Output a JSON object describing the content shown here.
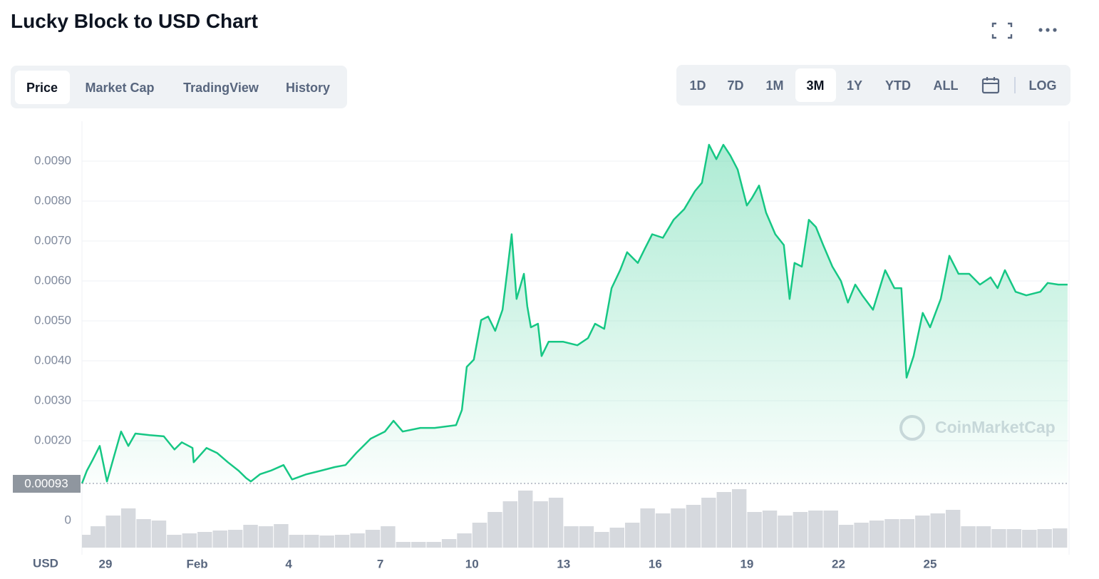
{
  "ui": {
    "tabs": [
      "Price",
      "Market Cap",
      "TradingView",
      "History"
    ],
    "active_tab": 0,
    "ranges": [
      "1D",
      "7D",
      "1M",
      "3M",
      "1Y",
      "YTD",
      "ALL"
    ],
    "active_range": 3,
    "log_button": "LOG",
    "watermark": "CoinMarketCap",
    "currency_label": "USD"
  },
  "chart_data": {
    "type": "area",
    "title": "Lucky Block to USD Chart",
    "color": "#16c784",
    "x": [
      28.23,
      28.39,
      28.58,
      28.81,
      29.05,
      29.28,
      29.51,
      29.75,
      29.98,
      30.45,
      30.91,
      31.26,
      31.5,
      31.85,
      31.89,
      32.31,
      32.66,
      33.01,
      33.36,
      33.6,
      33.76,
      34.06,
      34.41,
      34.83,
      35.11,
      35.58,
      36.05,
      36.51,
      36.86,
      37.21,
      37.68,
      38.15,
      38.43,
      38.73,
      39.31,
      39.78,
      40.48,
      40.67,
      40.83,
      41.06,
      41.3,
      41.53,
      41.76,
      42.0,
      42.16,
      42.3,
      42.46,
      42.7,
      42.81,
      42.93,
      43.16,
      43.28,
      43.51,
      43.98,
      44.45,
      44.8,
      45.03,
      45.33,
      45.57,
      45.85,
      46.08,
      46.43,
      46.66,
      46.9,
      47.25,
      47.6,
      47.95,
      48.3,
      48.53,
      48.76,
      49.0,
      49.23,
      49.46,
      49.7,
      50.0,
      50.16,
      50.4,
      50.63,
      50.93,
      51.21,
      51.4,
      51.56,
      51.8,
      52.03,
      52.26,
      52.5,
      52.8,
      53.08,
      53.31,
      53.55,
      53.78,
      54.13,
      54.53,
      54.83,
      55.06,
      55.23,
      55.46,
      55.76,
      56.0,
      56.35,
      56.63,
      56.93,
      57.28,
      57.63,
      57.98,
      58.21,
      58.45,
      58.8,
      59.15,
      59.61,
      59.85,
      60.2,
      60.5
    ],
    "values": [
      0.00093,
      0.00125,
      0.00152,
      0.00187,
      0.00098,
      0.00161,
      0.00223,
      0.00187,
      0.00218,
      0.00214,
      0.00211,
      0.00178,
      0.00196,
      0.00182,
      0.00146,
      0.00182,
      0.00169,
      0.00146,
      0.00125,
      0.00107,
      0.00098,
      0.00116,
      0.00125,
      0.00139,
      0.00103,
      0.00116,
      0.00125,
      0.00134,
      0.00139,
      0.00169,
      0.00205,
      0.00223,
      0.0025,
      0.00223,
      0.00232,
      0.00232,
      0.00239,
      0.00277,
      0.00385,
      0.00403,
      0.00502,
      0.00511,
      0.00475,
      0.00528,
      0.00627,
      0.00717,
      0.00555,
      0.00618,
      0.00537,
      0.00484,
      0.00493,
      0.00412,
      0.00448,
      0.00448,
      0.00439,
      0.00457,
      0.00493,
      0.0048,
      0.00582,
      0.00627,
      0.00672,
      0.00645,
      0.00681,
      0.00717,
      0.00708,
      0.00753,
      0.0078,
      0.00825,
      0.00846,
      0.00941,
      0.00905,
      0.00941,
      0.00914,
      0.00879,
      0.00789,
      0.00807,
      0.00839,
      0.00771,
      0.00717,
      0.0069,
      0.00555,
      0.00645,
      0.00636,
      0.00753,
      0.00735,
      0.0069,
      0.00636,
      0.006,
      0.00546,
      0.00591,
      0.00564,
      0.00528,
      0.00627,
      0.00582,
      0.00582,
      0.00358,
      0.00412,
      0.0052,
      0.00484,
      0.00555,
      0.00663,
      0.00618,
      0.00618,
      0.00591,
      0.00609,
      0.00582,
      0.00627,
      0.00573,
      0.00564,
      0.00573,
      0.00595,
      0.00591,
      0.00591
    ],
    "xlim": [
      28.23,
      60.55
    ],
    "xticks": [
      {
        "value": 29,
        "label": "29"
      },
      {
        "value": 32,
        "label": "Feb"
      },
      {
        "value": 35,
        "label": "4"
      },
      {
        "value": 38,
        "label": "7"
      },
      {
        "value": 41,
        "label": "10"
      },
      {
        "value": 44,
        "label": "13"
      },
      {
        "value": 47,
        "label": "16"
      },
      {
        "value": 50,
        "label": "19"
      },
      {
        "value": 53,
        "label": "22"
      },
      {
        "value": 56,
        "label": "25"
      }
    ],
    "ylim": [
      0.00093,
      0.01
    ],
    "yticks": [
      {
        "value": 0.002,
        "label": "0.0020"
      },
      {
        "value": 0.003,
        "label": "0.0030"
      },
      {
        "value": 0.004,
        "label": "0.0040"
      },
      {
        "value": 0.005,
        "label": "0.0050"
      },
      {
        "value": 0.006,
        "label": "0.0060"
      },
      {
        "value": 0.007,
        "label": "0.0070"
      },
      {
        "value": 0.008,
        "label": "0.0080"
      },
      {
        "value": 0.009,
        "label": "0.0090"
      }
    ],
    "grid": true,
    "reference_line": 0.00093,
    "volume": {
      "color": "#d6d9de",
      "x": [
        28.25,
        28.75,
        29.25,
        29.75,
        30.25,
        30.75,
        31.25,
        31.75,
        32.25,
        32.75,
        33.25,
        33.75,
        34.25,
        34.75,
        35.25,
        35.75,
        36.25,
        36.75,
        37.25,
        37.75,
        38.25,
        38.75,
        39.25,
        39.75,
        40.25,
        40.75,
        41.25,
        41.75,
        42.25,
        42.75,
        43.25,
        43.75,
        44.25,
        44.75,
        45.25,
        45.75,
        46.25,
        46.75,
        47.25,
        47.75,
        48.25,
        48.75,
        49.25,
        49.75,
        50.25,
        50.75,
        51.25,
        51.75,
        52.25,
        52.75,
        53.25,
        53.75,
        54.25,
        54.75,
        55.25,
        55.75,
        56.25,
        56.75,
        57.25,
        57.75,
        58.25,
        58.75,
        59.25,
        59.75,
        60.25
      ],
      "values": [
        18,
        30,
        45,
        55,
        40,
        38,
        18,
        20,
        22,
        24,
        25,
        32,
        30,
        33,
        18,
        18,
        17,
        18,
        20,
        25,
        30,
        8,
        8,
        8,
        12,
        20,
        35,
        50,
        65,
        80,
        65,
        70,
        30,
        30,
        22,
        28,
        35,
        55,
        48,
        55,
        60,
        70,
        78,
        82,
        50,
        52,
        45,
        50,
        52,
        52,
        32,
        35,
        38,
        40,
        40,
        45,
        48,
        53,
        30,
        30,
        26,
        26,
        25,
        26,
        27
      ]
    },
    "y2lim": [
      0,
      90
    ],
    "y2ticks": [
      0
    ]
  }
}
